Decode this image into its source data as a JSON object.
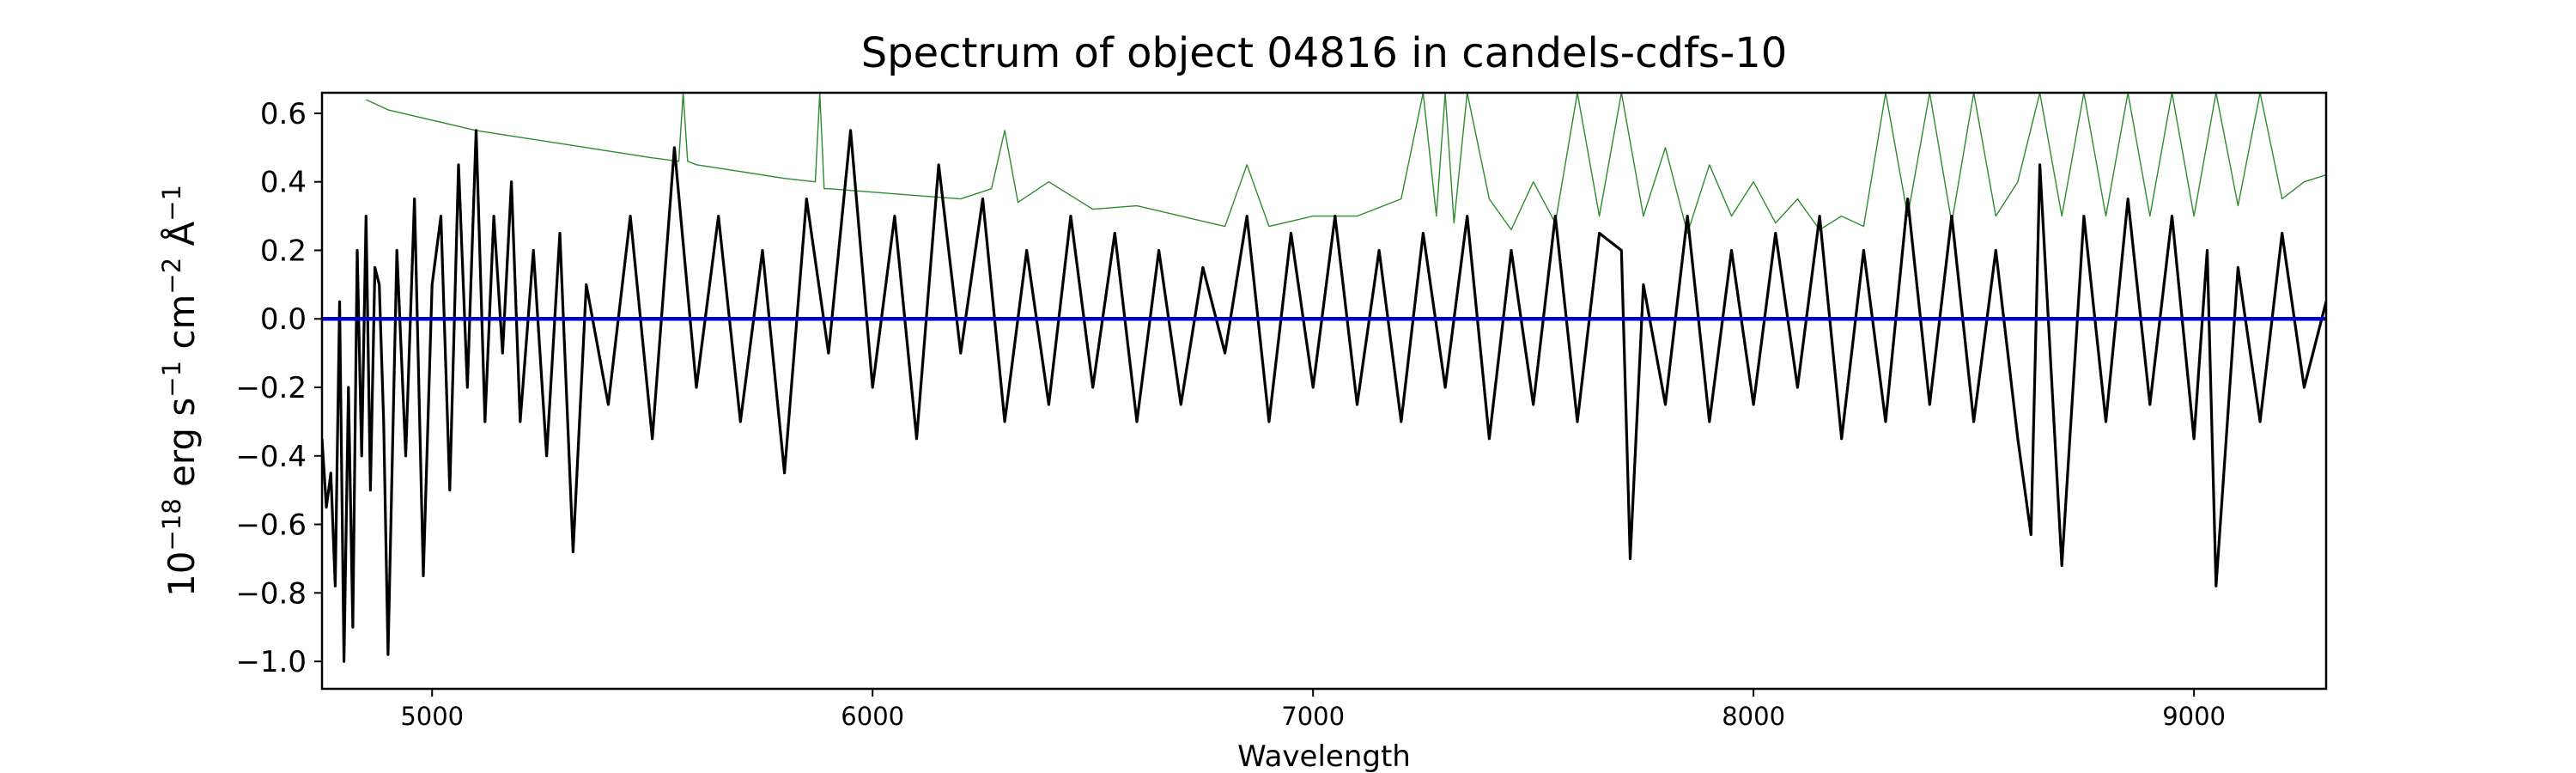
{
  "chart_data": {
    "type": "line",
    "title": "Spectrum of object 04816 in candels-cdfs-10",
    "xlabel": "Wavelength",
    "ylabel_base": "10",
    "ylabel_exp1": "−18",
    "ylabel_erg": " erg s",
    "ylabel_exp2": "−1",
    "ylabel_cm": " cm",
    "ylabel_exp3": "−2",
    "ylabel_ang": " Å",
    "ylabel_exp4": "−1",
    "xlim": [
      4750,
      9300
    ],
    "ylim": [
      -1.08,
      0.66
    ],
    "xticks": [
      5000,
      6000,
      7000,
      8000,
      9000
    ],
    "xtick_labels": [
      "5000",
      "6000",
      "7000",
      "8000",
      "9000"
    ],
    "yticks": [
      -1.0,
      -0.8,
      -0.6,
      -0.4,
      -0.2,
      0.0,
      0.2,
      0.4,
      0.6
    ],
    "ytick_labels": [
      "−1.0",
      "−0.8",
      "−0.6",
      "−0.4",
      "−0.2",
      "0.0",
      "0.2",
      "0.4",
      "0.6"
    ],
    "grid": false,
    "colors": {
      "flux": "#000000",
      "error": "#2e8b2e",
      "model": "#0000cc"
    },
    "series": [
      {
        "key": "flux",
        "x": [
          4750,
          4760,
          4770,
          4780,
          4790,
          4800,
          4810,
          4820,
          4830,
          4840,
          4850,
          4860,
          4870,
          4880,
          4890,
          4900,
          4920,
          4940,
          4960,
          4980,
          5000,
          5020,
          5040,
          5060,
          5080,
          5100,
          5120,
          5140,
          5160,
          5180,
          5200,
          5230,
          5260,
          5290,
          5320,
          5350,
          5400,
          5450,
          5500,
          5550,
          5600,
          5650,
          5700,
          5750,
          5800,
          5850,
          5900,
          5950,
          6000,
          6050,
          6100,
          6150,
          6200,
          6250,
          6300,
          6350,
          6400,
          6450,
          6500,
          6550,
          6600,
          6650,
          6700,
          6750,
          6800,
          6850,
          6900,
          6950,
          7000,
          7050,
          7100,
          7150,
          7200,
          7250,
          7300,
          7350,
          7400,
          7450,
          7500,
          7550,
          7600,
          7650,
          7700,
          7720,
          7750,
          7800,
          7850,
          7900,
          7950,
          8000,
          8050,
          8100,
          8150,
          8200,
          8250,
          8300,
          8350,
          8400,
          8450,
          8500,
          8550,
          8600,
          8630,
          8650,
          8700,
          8750,
          8800,
          8850,
          8900,
          8950,
          9000,
          9030,
          9050,
          9100,
          9150,
          9200,
          9250,
          9300
        ],
        "y": [
          -0.35,
          -0.55,
          -0.45,
          -0.78,
          0.05,
          -1.0,
          -0.2,
          -0.9,
          0.2,
          -0.4,
          0.3,
          -0.5,
          0.15,
          0.1,
          -0.3,
          -0.98,
          0.2,
          -0.4,
          0.35,
          -0.75,
          0.1,
          0.3,
          -0.5,
          0.45,
          -0.2,
          0.55,
          -0.3,
          0.3,
          -0.1,
          0.4,
          -0.3,
          0.2,
          -0.4,
          0.25,
          -0.68,
          0.1,
          -0.25,
          0.3,
          -0.35,
          0.5,
          -0.2,
          0.3,
          -0.3,
          0.2,
          -0.45,
          0.35,
          -0.1,
          0.55,
          -0.2,
          0.3,
          -0.35,
          0.45,
          -0.1,
          0.35,
          -0.3,
          0.2,
          -0.25,
          0.3,
          -0.2,
          0.25,
          -0.3,
          0.2,
          -0.25,
          0.15,
          -0.1,
          0.3,
          -0.3,
          0.25,
          -0.2,
          0.3,
          -0.25,
          0.2,
          -0.3,
          0.25,
          -0.2,
          0.3,
          -0.35,
          0.2,
          -0.25,
          0.3,
          -0.3,
          0.25,
          0.2,
          -0.7,
          0.1,
          -0.25,
          0.3,
          -0.3,
          0.2,
          -0.25,
          0.25,
          -0.2,
          0.3,
          -0.35,
          0.2,
          -0.3,
          0.35,
          -0.25,
          0.3,
          -0.3,
          0.2,
          -0.35,
          -0.63,
          0.45,
          -0.72,
          0.3,
          -0.3,
          0.35,
          -0.25,
          0.3,
          -0.35,
          0.2,
          -0.78,
          0.15,
          -0.3,
          0.25,
          -0.2,
          0.05
        ]
      },
      {
        "key": "error",
        "x": [
          4850,
          4900,
          5000,
          5100,
          5200,
          5300,
          5400,
          5500,
          5560,
          5570,
          5580,
          5600,
          5700,
          5800,
          5870,
          5880,
          5890,
          5900,
          6000,
          6100,
          6200,
          6270,
          6300,
          6330,
          6400,
          6500,
          6600,
          6700,
          6800,
          6850,
          6900,
          7000,
          7100,
          7200,
          7250,
          7280,
          7300,
          7320,
          7350,
          7400,
          7450,
          7500,
          7550,
          7600,
          7650,
          7700,
          7750,
          7800,
          7850,
          7900,
          7950,
          8000,
          8050,
          8100,
          8150,
          8200,
          8250,
          8300,
          8350,
          8400,
          8450,
          8500,
          8550,
          8600,
          8650,
          8700,
          8750,
          8800,
          8850,
          8900,
          8950,
          9000,
          9050,
          9100,
          9150,
          9200,
          9250,
          9300
        ],
        "y": [
          0.64,
          0.61,
          0.58,
          0.55,
          0.53,
          0.51,
          0.49,
          0.47,
          0.46,
          0.66,
          0.46,
          0.45,
          0.43,
          0.41,
          0.4,
          0.66,
          0.38,
          0.38,
          0.37,
          0.36,
          0.35,
          0.38,
          0.55,
          0.34,
          0.4,
          0.32,
          0.33,
          0.3,
          0.27,
          0.45,
          0.27,
          0.3,
          0.3,
          0.35,
          0.66,
          0.3,
          0.66,
          0.28,
          0.66,
          0.35,
          0.26,
          0.4,
          0.28,
          0.66,
          0.3,
          0.66,
          0.3,
          0.5,
          0.25,
          0.45,
          0.3,
          0.4,
          0.28,
          0.35,
          0.26,
          0.3,
          0.27,
          0.66,
          0.3,
          0.66,
          0.28,
          0.66,
          0.3,
          0.4,
          0.66,
          0.3,
          0.66,
          0.3,
          0.66,
          0.3,
          0.66,
          0.3,
          0.66,
          0.33,
          0.66,
          0.35,
          0.4,
          0.42
        ]
      },
      {
        "key": "model",
        "x": [
          4750,
          9300
        ],
        "y": [
          0.0,
          0.0
        ]
      }
    ]
  }
}
